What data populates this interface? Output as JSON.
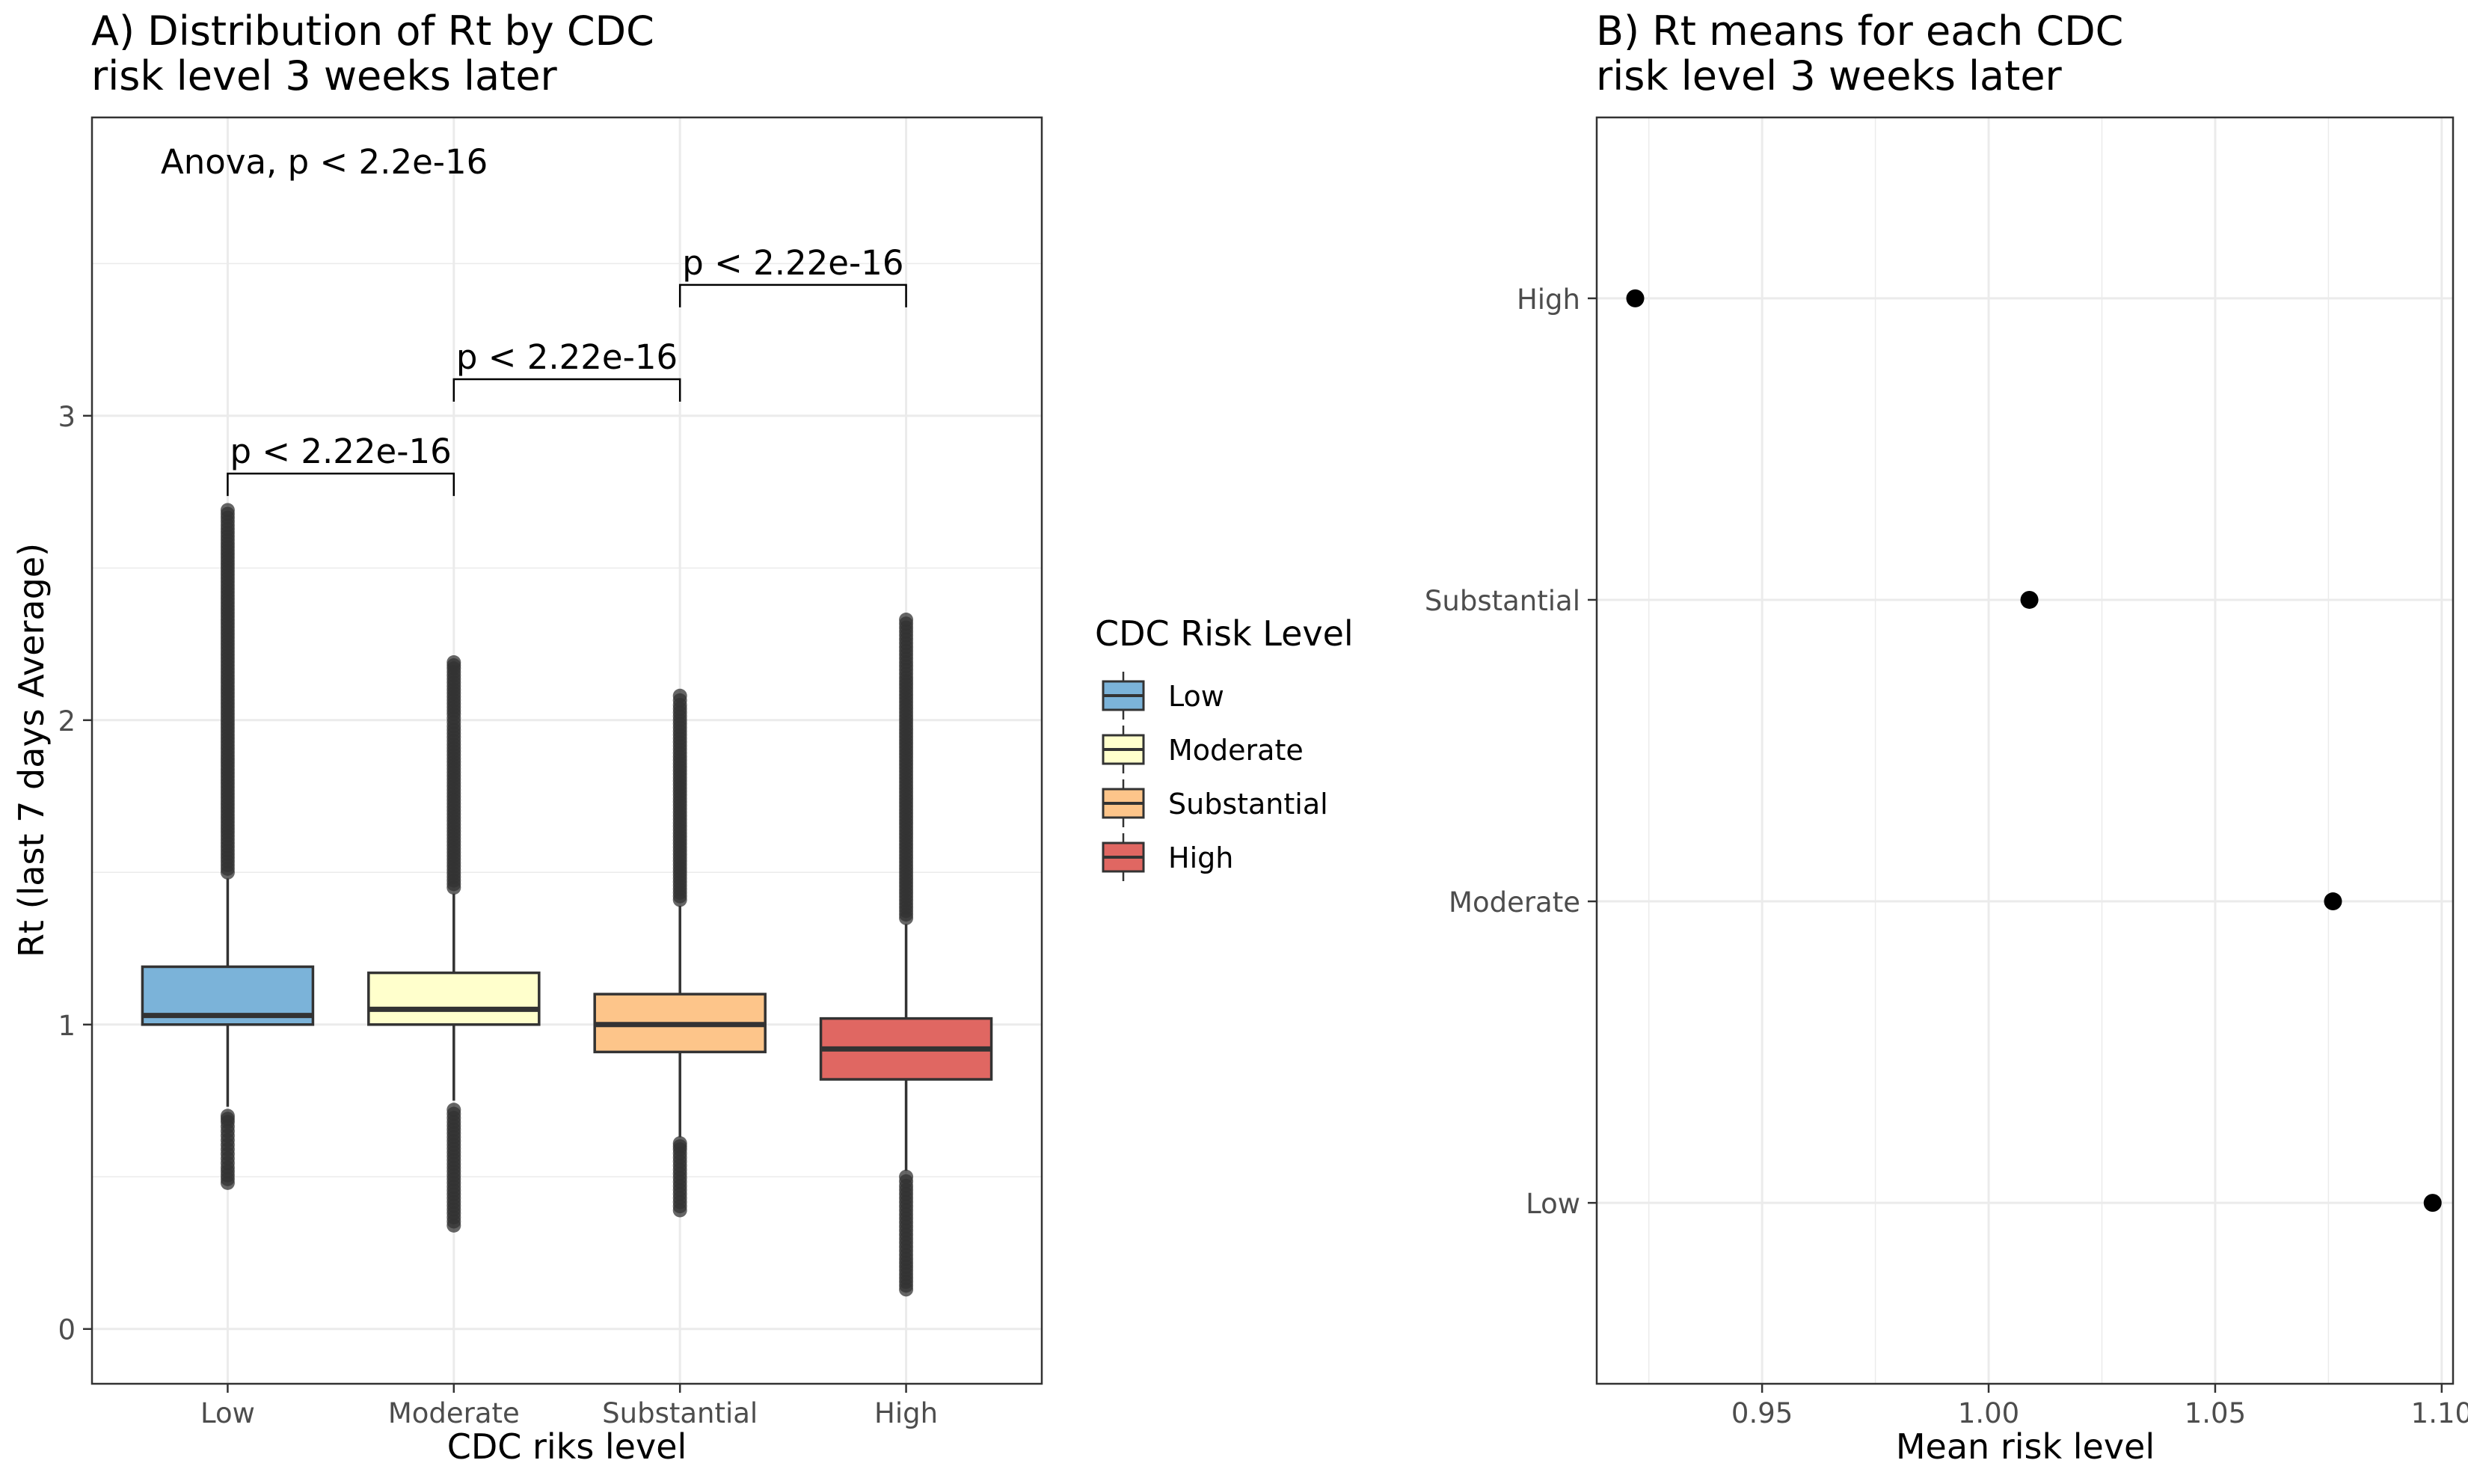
{
  "chart_data": [
    {
      "type": "box",
      "title_lines": [
        "A) Distribution of Rt by CDC",
        "risk level 3 weeks later"
      ],
      "xlabel": "CDC riks level",
      "ylabel": "Rt (last 7 days Average)",
      "ylim": [
        -0.18,
        3.98
      ],
      "yticks": [
        0,
        1,
        2,
        3
      ],
      "grid": true,
      "annotation": "Anova, p < 2.2e-16",
      "categories": [
        "Low",
        "Moderate",
        "Substantial",
        "High"
      ],
      "boxes": [
        {
          "category": "Low",
          "lower_whisker": 0.73,
          "q1": 1.0,
          "median": 1.03,
          "q3": 1.19,
          "upper_whisker": 1.48,
          "color": "#7bb3d9",
          "outliers_low": [
            0.48,
            0.53,
            0.56,
            0.59,
            0.62,
            0.65,
            0.68,
            0.7
          ],
          "outliers_high": [
            1.5,
            1.56,
            1.62,
            1.7,
            1.78,
            1.86,
            1.94,
            2.02,
            2.1,
            2.18,
            2.26,
            2.34,
            2.42,
            2.5,
            2.58,
            2.64,
            2.69
          ]
        },
        {
          "category": "Moderate",
          "lower_whisker": 0.75,
          "q1": 1.0,
          "median": 1.05,
          "q3": 1.17,
          "upper_whisker": 1.43,
          "color": "#ffffcc",
          "outliers_low": [
            0.34,
            0.38,
            0.43,
            0.48,
            0.53,
            0.58,
            0.63,
            0.68,
            0.72
          ],
          "outliers_high": [
            1.45,
            1.52,
            1.6,
            1.68,
            1.76,
            1.84,
            1.92,
            1.98,
            2.02,
            2.1,
            2.17,
            2.19
          ]
        },
        {
          "category": "Substantial",
          "lower_whisker": 0.63,
          "q1": 0.91,
          "median": 1.0,
          "q3": 1.1,
          "upper_whisker": 1.39,
          "color": "#fdc58a",
          "outliers_low": [
            0.39,
            0.43,
            0.47,
            0.51,
            0.55,
            0.59,
            0.61
          ],
          "outliers_high": [
            1.41,
            1.48,
            1.56,
            1.64,
            1.72,
            1.8,
            1.88,
            1.94,
            2.0,
            2.05,
            2.08
          ]
        },
        {
          "category": "High",
          "lower_whisker": 0.52,
          "q1": 0.82,
          "median": 0.92,
          "q3": 1.02,
          "upper_whisker": 1.33,
          "color": "#e06762",
          "outliers_low": [
            0.13,
            0.18,
            0.23,
            0.27,
            0.31,
            0.35,
            0.39,
            0.43,
            0.47,
            0.5
          ],
          "outliers_high": [
            1.35,
            1.42,
            1.5,
            1.58,
            1.66,
            1.74,
            1.82,
            1.9,
            1.98,
            2.06,
            2.14,
            2.19,
            2.24,
            2.33
          ]
        }
      ],
      "comparisons": [
        {
          "from": "Low",
          "to": "Moderate",
          "y": 2.81,
          "label": "p < 2.22e-16"
        },
        {
          "from": "Moderate",
          "to": "Substantial",
          "y": 3.12,
          "label": "p < 2.22e-16"
        },
        {
          "from": "Substantial",
          "to": "High",
          "y": 3.43,
          "label": "p < 2.22e-16"
        }
      ],
      "legend": {
        "title": "CDC Risk Level",
        "placement": "right",
        "items": [
          {
            "label": "Low",
            "color": "#7bb3d9"
          },
          {
            "label": "Moderate",
            "color": "#ffffcc"
          },
          {
            "label": "Substantial",
            "color": "#fdc58a"
          },
          {
            "label": "High",
            "color": "#e06762"
          }
        ]
      }
    },
    {
      "type": "scatter",
      "title_lines": [
        "B) Rt means for each CDC",
        "risk level 3 weeks later"
      ],
      "xlabel": "Mean risk level",
      "ylabel": "",
      "xlim": [
        0.9135,
        1.1025
      ],
      "xticks": [
        0.95,
        1.0,
        1.05,
        1.1
      ],
      "xtick_labels": [
        "0.95",
        "1.00",
        "1.05",
        "1.10"
      ],
      "categories": [
        "High",
        "Substantial",
        "Moderate",
        "Low"
      ],
      "grid": true,
      "points": [
        {
          "category": "High",
          "x": 0.922
        },
        {
          "category": "Substantial",
          "x": 1.009
        },
        {
          "category": "Moderate",
          "x": 1.076
        },
        {
          "category": "Low",
          "x": 1.098
        }
      ]
    }
  ]
}
